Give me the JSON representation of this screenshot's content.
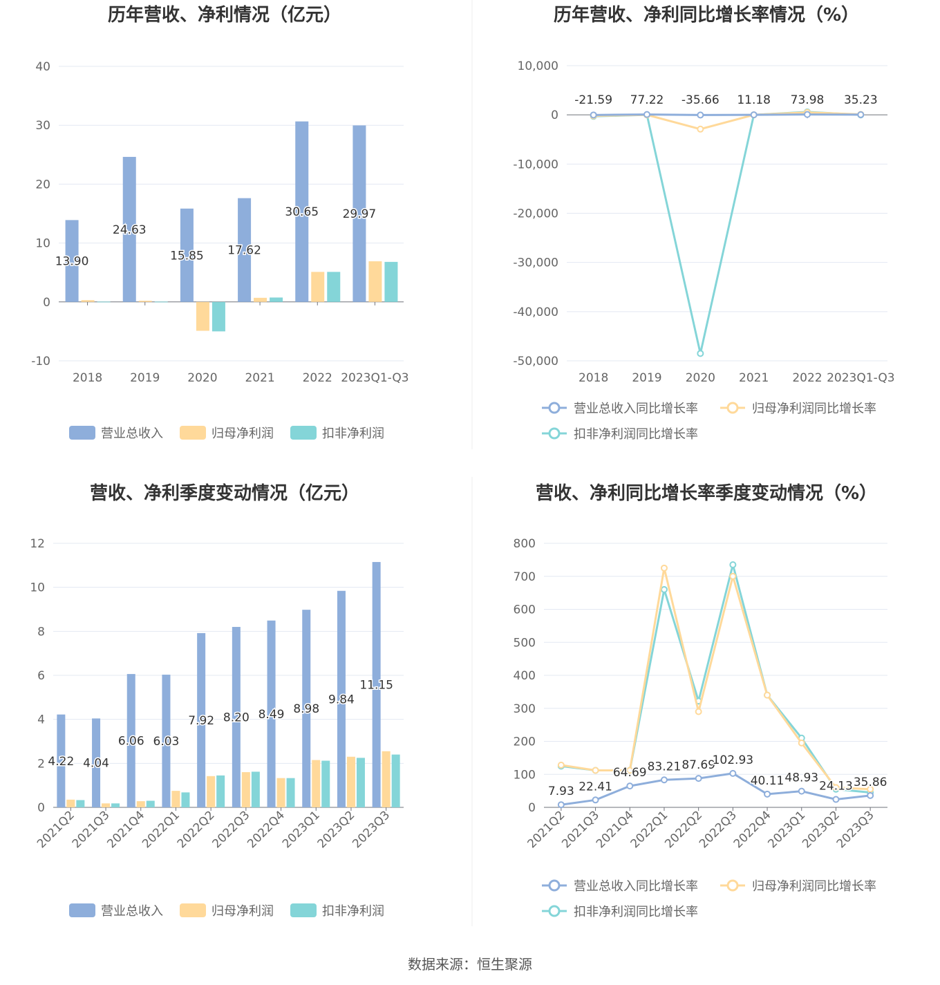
{
  "source": "数据来源：恒生聚源",
  "colors": {
    "revenue": "#8eaedb",
    "net": "#ffd99a",
    "deducted": "#84d5d8",
    "grid": "#e3e8f2",
    "axis": "#6e7079"
  },
  "chart_data": [
    {
      "type": "bar",
      "title": "历年营收、净利情况（亿元）",
      "categories": [
        "2018",
        "2019",
        "2020",
        "2021",
        "2022",
        "2023Q1-Q3"
      ],
      "ylim": [
        -10,
        40
      ],
      "yticks": [
        "-10",
        "0",
        "10",
        "20",
        "30",
        "40"
      ],
      "yticks_values": [
        -10,
        0,
        10,
        20,
        30,
        40
      ],
      "series": [
        {
          "name": "营业总收入",
          "values": [
            13.9,
            24.63,
            15.85,
            17.62,
            30.65,
            29.97
          ],
          "labels": [
            "13.90",
            "24.63",
            "15.85",
            "17.62",
            "30.65",
            "29.97"
          ]
        },
        {
          "name": "归母净利润",
          "values": [
            0.3,
            0.2,
            -4.9,
            0.7,
            5.1,
            6.9
          ]
        },
        {
          "name": "扣非净利润",
          "values": [
            0.05,
            0.05,
            -5.0,
            0.75,
            5.1,
            6.8
          ]
        }
      ]
    },
    {
      "type": "line",
      "title": "历年营收、净利同比增长率情况（%）",
      "categories": [
        "2018",
        "2019",
        "2020",
        "2021",
        "2022",
        "2023Q1-Q3"
      ],
      "ylim": [
        -50000,
        10000
      ],
      "yticks": [
        "-50,000",
        "-40,000",
        "-30,000",
        "-20,000",
        "-10,000",
        "0",
        "10,000"
      ],
      "yticks_values": [
        -50000,
        -40000,
        -30000,
        -20000,
        -10000,
        0,
        10000
      ],
      "series": [
        {
          "name": "营业总收入同比增长率",
          "values": [
            -21.59,
            77.22,
            -35.66,
            11.18,
            73.98,
            35.23
          ],
          "labels": [
            "-21.59",
            "77.22",
            "-35.66",
            "11.18",
            "73.98",
            "35.23"
          ]
        },
        {
          "name": "归母净利润同比增长率",
          "values": [
            -200,
            0,
            -2900,
            0,
            500,
            100
          ]
        },
        {
          "name": "扣非净利润同比增长率",
          "values": [
            -300,
            0,
            -48500,
            0,
            600,
            0
          ]
        }
      ]
    },
    {
      "type": "bar",
      "title": "营收、净利季度变动情况（亿元）",
      "categories": [
        "2021Q2",
        "2021Q3",
        "2021Q4",
        "2022Q1",
        "2022Q2",
        "2022Q3",
        "2022Q4",
        "2023Q1",
        "2023Q2",
        "2023Q3"
      ],
      "ylim": [
        0,
        12
      ],
      "yticks": [
        "0",
        "2",
        "4",
        "6",
        "8",
        "10",
        "12"
      ],
      "yticks_values": [
        0,
        2,
        4,
        6,
        8,
        10,
        12
      ],
      "series": [
        {
          "name": "营业总收入",
          "values": [
            4.22,
            4.04,
            6.06,
            6.03,
            7.92,
            8.2,
            8.49,
            8.98,
            9.84,
            11.15
          ],
          "labels": [
            "4.22",
            "4.04",
            "6.06",
            "6.03",
            "7.92",
            "8.20",
            "8.49",
            "8.98",
            "9.84",
            "11.15"
          ]
        },
        {
          "name": "归母净利润",
          "values": [
            0.35,
            0.18,
            0.28,
            0.75,
            1.42,
            1.6,
            1.33,
            2.15,
            2.3,
            2.55
          ]
        },
        {
          "name": "扣非净利润",
          "values": [
            0.33,
            0.18,
            0.3,
            0.68,
            1.45,
            1.62,
            1.33,
            2.12,
            2.25,
            2.4
          ]
        }
      ]
    },
    {
      "type": "line",
      "title": "营收、净利同比增长率季度变动情况（%）",
      "categories": [
        "2021Q2",
        "2021Q3",
        "2021Q4",
        "2022Q1",
        "2022Q2",
        "2022Q3",
        "2022Q4",
        "2023Q1",
        "2023Q2",
        "2023Q3"
      ],
      "ylim": [
        0,
        800
      ],
      "yticks": [
        "0",
        "100",
        "200",
        "300",
        "400",
        "500",
        "600",
        "700",
        "800"
      ],
      "yticks_values": [
        0,
        100,
        200,
        300,
        400,
        500,
        600,
        700,
        800
      ],
      "series": [
        {
          "name": "营业总收入同比增长率",
          "values": [
            7.93,
            22.41,
            64.69,
            83.21,
            87.69,
            102.93,
            40.11,
            48.93,
            24.13,
            35.86
          ],
          "labels": [
            "7.93",
            "22.41",
            "64.69",
            "83.21",
            "87.69",
            "102.93",
            "40.11",
            "48.93",
            "24.13",
            "35.86"
          ]
        },
        {
          "name": "归母净利润同比增长率",
          "values": [
            128,
            112,
            112,
            725,
            290,
            700,
            340,
            195,
            60,
            55
          ]
        },
        {
          "name": "扣非净利润同比增长率",
          "values": [
            125,
            112,
            112,
            660,
            322,
            735,
            340,
            210,
            55,
            45
          ]
        }
      ]
    }
  ]
}
